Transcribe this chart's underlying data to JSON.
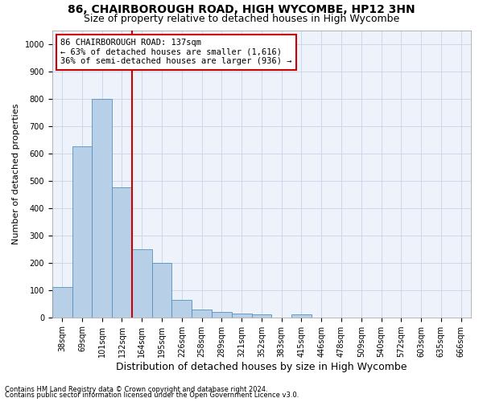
{
  "title1": "86, CHAIRBOROUGH ROAD, HIGH WYCOMBE, HP12 3HN",
  "title2": "Size of property relative to detached houses in High Wycombe",
  "xlabel": "Distribution of detached houses by size in High Wycombe",
  "ylabel": "Number of detached properties",
  "footnote1": "Contains HM Land Registry data © Crown copyright and database right 2024.",
  "footnote2": "Contains public sector information licensed under the Open Government Licence v3.0.",
  "bar_labels": [
    "38sqm",
    "69sqm",
    "101sqm",
    "132sqm",
    "164sqm",
    "195sqm",
    "226sqm",
    "258sqm",
    "289sqm",
    "321sqm",
    "352sqm",
    "383sqm",
    "415sqm",
    "446sqm",
    "478sqm",
    "509sqm",
    "540sqm",
    "572sqm",
    "603sqm",
    "635sqm",
    "666sqm"
  ],
  "bar_values": [
    110,
    625,
    800,
    475,
    250,
    200,
    65,
    28,
    20,
    15,
    10,
    0,
    10,
    0,
    0,
    0,
    0,
    0,
    0,
    0,
    0
  ],
  "bar_color": "#b8cfe8",
  "bar_edge_color": "#5590c0",
  "vline_color": "#cc0000",
  "annotation_text": "86 CHAIRBOROUGH ROAD: 137sqm\n← 63% of detached houses are smaller (1,616)\n36% of semi-detached houses are larger (936) →",
  "annotation_box_color": "#cc0000",
  "ylim": [
    0,
    1050
  ],
  "yticks": [
    0,
    100,
    200,
    300,
    400,
    500,
    600,
    700,
    800,
    900,
    1000
  ],
  "bg_color": "#eef2fb",
  "grid_color": "#c8d4e8",
  "title1_fontsize": 10,
  "title2_fontsize": 9,
  "ylabel_fontsize": 8,
  "xlabel_fontsize": 9,
  "footnote_fontsize": 6,
  "tick_fontsize": 7,
  "ann_fontsize": 7.5
}
